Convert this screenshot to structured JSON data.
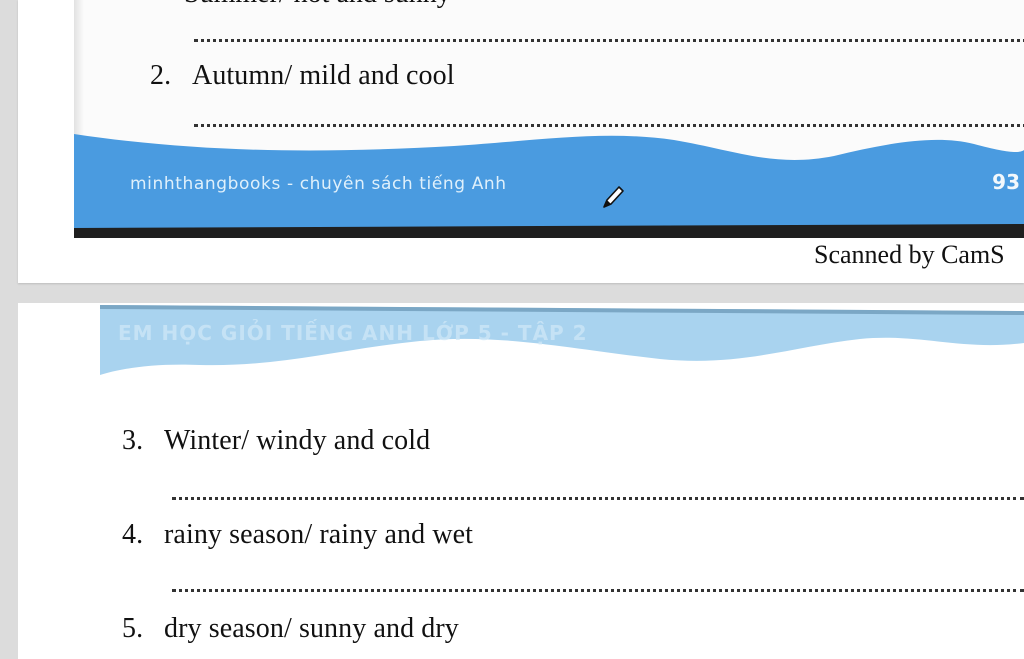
{
  "top_page": {
    "partial_line": "Summer/ hot and sunny",
    "items": [
      {
        "number": "2.",
        "text": "Autumn/ mild and cool"
      }
    ],
    "footer": {
      "publisher": "minhthangbooks - chuyên sách tiếng Anh",
      "page_number": "93"
    },
    "scan_caption": "Scanned by CamS"
  },
  "bottom_page": {
    "header": "EM HỌC GIỎI TIẾNG ANH LỚP 5 - TẬP 2",
    "items": [
      {
        "number": "3.",
        "text": "Winter/ windy and cold"
      },
      {
        "number": "4.",
        "text": "rainy season/ rainy and wet"
      },
      {
        "number": "5.",
        "text": "dry season/ sunny and dry"
      }
    ]
  },
  "colors": {
    "band_blue": "#4a9be0",
    "band_light_blue": "#a9d3ef",
    "dots": "#333333"
  },
  "icons": [
    "pencil-icon"
  ]
}
